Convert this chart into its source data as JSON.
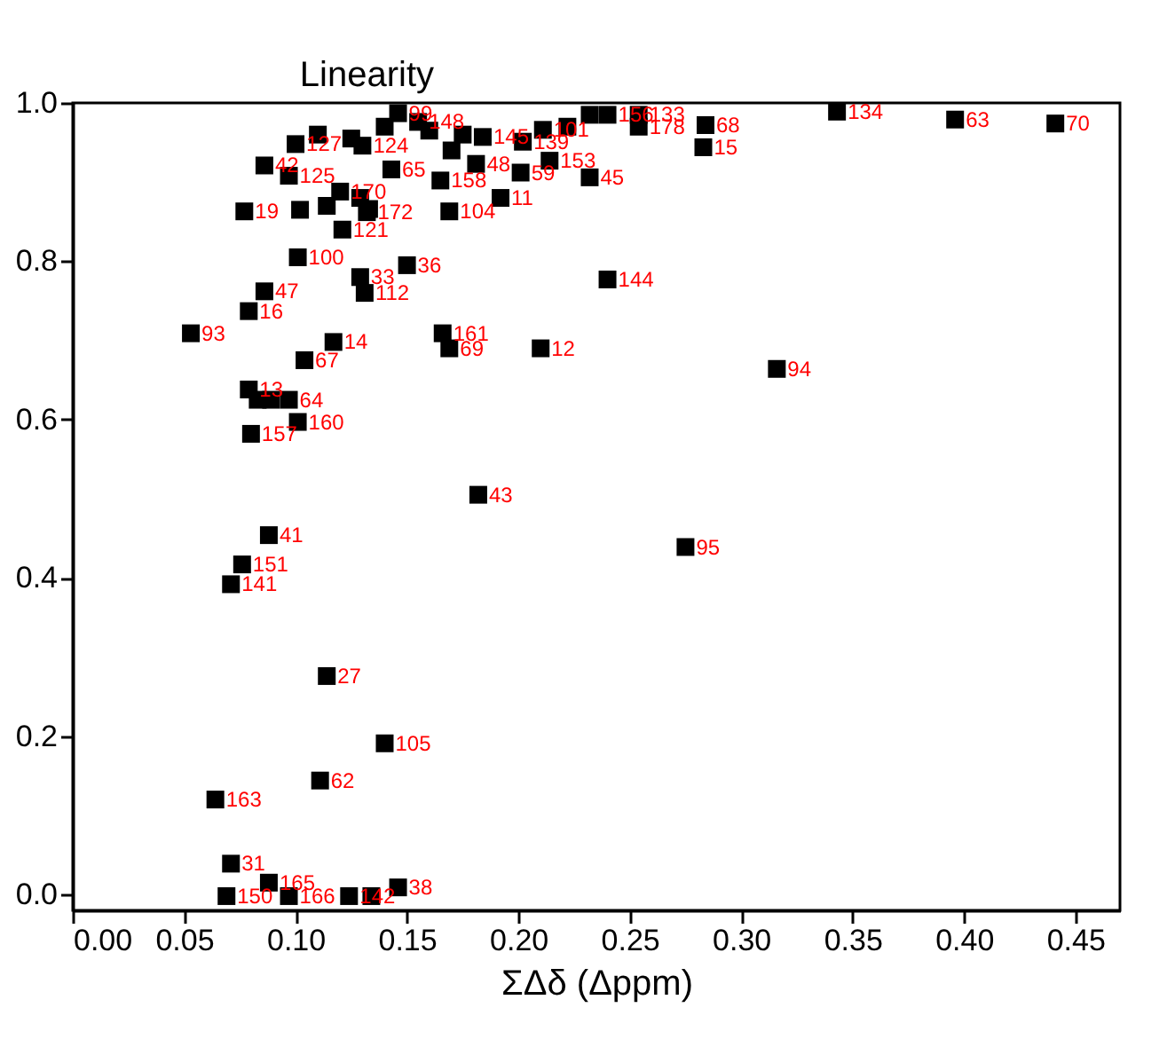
{
  "chart_data": {
    "type": "scatter",
    "xlabel": "ΣΔδ (Δppm)",
    "ylabel": "Linearity",
    "xlim": [
      0,
      0.47
    ],
    "ylim": [
      -0.02,
      1.0
    ],
    "xticks": [
      {
        "value": 0,
        "label": "0.00"
      },
      {
        "value": 0.05,
        "label": "0.05"
      },
      {
        "value": 0.1,
        "label": "0.10"
      },
      {
        "value": 0.15,
        "label": "0.15"
      },
      {
        "value": 0.2,
        "label": "0.20"
      },
      {
        "value": 0.25,
        "label": "0.25"
      },
      {
        "value": 0.3,
        "label": "0.30"
      },
      {
        "value": 0.35,
        "label": "0.35"
      },
      {
        "value": 0.4,
        "label": "0.40"
      },
      {
        "value": 0.45,
        "label": "0.45"
      }
    ],
    "yticks": [
      {
        "value": 0,
        "label": "0.0"
      },
      {
        "value": 0.2,
        "label": "0.2"
      },
      {
        "value": 0.4,
        "label": "0.4"
      },
      {
        "value": 0.6,
        "label": "0.6"
      },
      {
        "value": 0.8,
        "label": "0.8"
      },
      {
        "value": 1.0,
        "label": "1.0"
      }
    ],
    "marker": "square",
    "grid": false,
    "series": [
      {
        "color": "#000000",
        "x": [
          0.343,
          0.396,
          0.441,
          0.284,
          0.283,
          0.254,
          0.24,
          0.254,
          0.211,
          0.086,
          0.097,
          0.077,
          0.101,
          0.086,
          0.079,
          0.053,
          0.117,
          0.104,
          0.079,
          0.083,
          0.089,
          0.097,
          0.08,
          0.101,
          0.182,
          0.166,
          0.169,
          0.21,
          0.15,
          0.129,
          0.131,
          0.24,
          0.316,
          0.232,
          0.214,
          0.201,
          0.192,
          0.169,
          0.165,
          0.181,
          0.143,
          0.184,
          0.202,
          0.155,
          0.146,
          0.1,
          0.13,
          0.12,
          0.114,
          0.121,
          0.132,
          0.129,
          0.133,
          0.102,
          0.088,
          0.076,
          0.071,
          0.114,
          0.14,
          0.111,
          0.064,
          0.071,
          0.088,
          0.146,
          0.069,
          0.097,
          0.124,
          0.134,
          0.275,
          0.11,
          0.125,
          0.16,
          0.175,
          0.232,
          0.222,
          0.14,
          0.17
        ],
        "values": [
          0.989,
          0.979,
          0.974,
          0.972,
          0.944,
          0.97,
          0.985,
          0.985,
          0.966,
          0.921,
          0.908,
          0.863,
          0.805,
          0.762,
          0.737,
          0.709,
          0.698,
          0.675,
          0.638,
          0.625,
          0.625,
          0.625,
          0.582,
          0.597,
          0.505,
          0.709,
          0.69,
          0.69,
          0.795,
          0.78,
          0.76,
          0.777,
          0.664,
          0.906,
          0.927,
          0.912,
          0.88,
          0.863,
          0.902,
          0.923,
          0.916,
          0.957,
          0.951,
          0.976,
          0.987,
          0.948,
          0.946,
          0.888,
          0.87,
          0.84,
          0.862,
          0.88,
          0.866,
          0.865,
          0.454,
          0.417,
          0.392,
          0.276,
          0.191,
          0.144,
          0.12,
          0.039,
          0.015,
          0.009,
          -0.002,
          -0.002,
          -0.002,
          -0.002,
          0.439,
          0.96,
          0.955,
          0.965,
          0.96,
          0.985,
          0.97,
          0.97,
          0.94
        ]
      }
    ],
    "annotations": [
      {
        "text": "134",
        "x": 0.343,
        "y": 0.989
      },
      {
        "text": "63",
        "x": 0.396,
        "y": 0.979
      },
      {
        "text": "70",
        "x": 0.441,
        "y": 0.974
      },
      {
        "text": "68",
        "x": 0.284,
        "y": 0.972
      },
      {
        "text": "15",
        "x": 0.283,
        "y": 0.944
      },
      {
        "text": "178",
        "x": 0.254,
        "y": 0.97
      },
      {
        "text": "156",
        "x": 0.24,
        "y": 0.985
      },
      {
        "text": "133",
        "x": 0.254,
        "y": 0.985
      },
      {
        "text": "101",
        "x": 0.211,
        "y": 0.966
      },
      {
        "text": "42",
        "x": 0.086,
        "y": 0.921
      },
      {
        "text": "125",
        "x": 0.097,
        "y": 0.908
      },
      {
        "text": "19",
        "x": 0.077,
        "y": 0.863
      },
      {
        "text": "100",
        "x": 0.101,
        "y": 0.805
      },
      {
        "text": "47",
        "x": 0.086,
        "y": 0.762
      },
      {
        "text": "16",
        "x": 0.079,
        "y": 0.737
      },
      {
        "text": "93",
        "x": 0.053,
        "y": 0.709
      },
      {
        "text": "14",
        "x": 0.117,
        "y": 0.698
      },
      {
        "text": "67",
        "x": 0.104,
        "y": 0.675
      },
      {
        "text": "13",
        "x": 0.079,
        "y": 0.638
      },
      {
        "text": "64",
        "x": 0.097,
        "y": 0.625
      },
      {
        "text": "157",
        "x": 0.08,
        "y": 0.582
      },
      {
        "text": "160",
        "x": 0.101,
        "y": 0.597
      },
      {
        "text": "43",
        "x": 0.182,
        "y": 0.505
      },
      {
        "text": "161",
        "x": 0.166,
        "y": 0.709
      },
      {
        "text": "69",
        "x": 0.169,
        "y": 0.69
      },
      {
        "text": "12",
        "x": 0.21,
        "y": 0.69
      },
      {
        "text": "36",
        "x": 0.15,
        "y": 0.795
      },
      {
        "text": "33",
        "x": 0.129,
        "y": 0.78
      },
      {
        "text": "112",
        "x": 0.131,
        "y": 0.76
      },
      {
        "text": "144",
        "x": 0.24,
        "y": 0.777
      },
      {
        "text": "94",
        "x": 0.316,
        "y": 0.664
      },
      {
        "text": "45",
        "x": 0.232,
        "y": 0.906
      },
      {
        "text": "153",
        "x": 0.214,
        "y": 0.927
      },
      {
        "text": "59",
        "x": 0.201,
        "y": 0.912
      },
      {
        "text": "11",
        "x": 0.192,
        "y": 0.88
      },
      {
        "text": "104",
        "x": 0.169,
        "y": 0.863
      },
      {
        "text": "158",
        "x": 0.165,
        "y": 0.902
      },
      {
        "text": "48",
        "x": 0.181,
        "y": 0.923
      },
      {
        "text": "65",
        "x": 0.143,
        "y": 0.916
      },
      {
        "text": "145",
        "x": 0.184,
        "y": 0.957
      },
      {
        "text": "139",
        "x": 0.202,
        "y": 0.951
      },
      {
        "text": "148",
        "x": 0.155,
        "y": 0.976
      },
      {
        "text": "99",
        "x": 0.146,
        "y": 0.987
      },
      {
        "text": "127",
        "x": 0.1,
        "y": 0.948
      },
      {
        "text": "124",
        "x": 0.13,
        "y": 0.946
      },
      {
        "text": "170",
        "x": 0.12,
        "y": 0.888
      },
      {
        "text": "121",
        "x": 0.121,
        "y": 0.84
      },
      {
        "text": "172",
        "x": 0.132,
        "y": 0.862
      },
      {
        "text": "41",
        "x": 0.088,
        "y": 0.454
      },
      {
        "text": "151",
        "x": 0.076,
        "y": 0.417
      },
      {
        "text": "141",
        "x": 0.071,
        "y": 0.392
      },
      {
        "text": "27",
        "x": 0.114,
        "y": 0.276
      },
      {
        "text": "105",
        "x": 0.14,
        "y": 0.191
      },
      {
        "text": "62",
        "x": 0.111,
        "y": 0.144
      },
      {
        "text": "163",
        "x": 0.064,
        "y": 0.12
      },
      {
        "text": "31",
        "x": 0.071,
        "y": 0.039
      },
      {
        "text": "165",
        "x": 0.088,
        "y": 0.015
      },
      {
        "text": "38",
        "x": 0.146,
        "y": 0.009
      },
      {
        "text": "150",
        "x": 0.069,
        "y": -0.002
      },
      {
        "text": "166",
        "x": 0.097,
        "y": -0.002
      },
      {
        "text": "142",
        "x": 0.124,
        "y": -0.002
      },
      {
        "text": "95",
        "x": 0.275,
        "y": 0.439
      }
    ]
  }
}
